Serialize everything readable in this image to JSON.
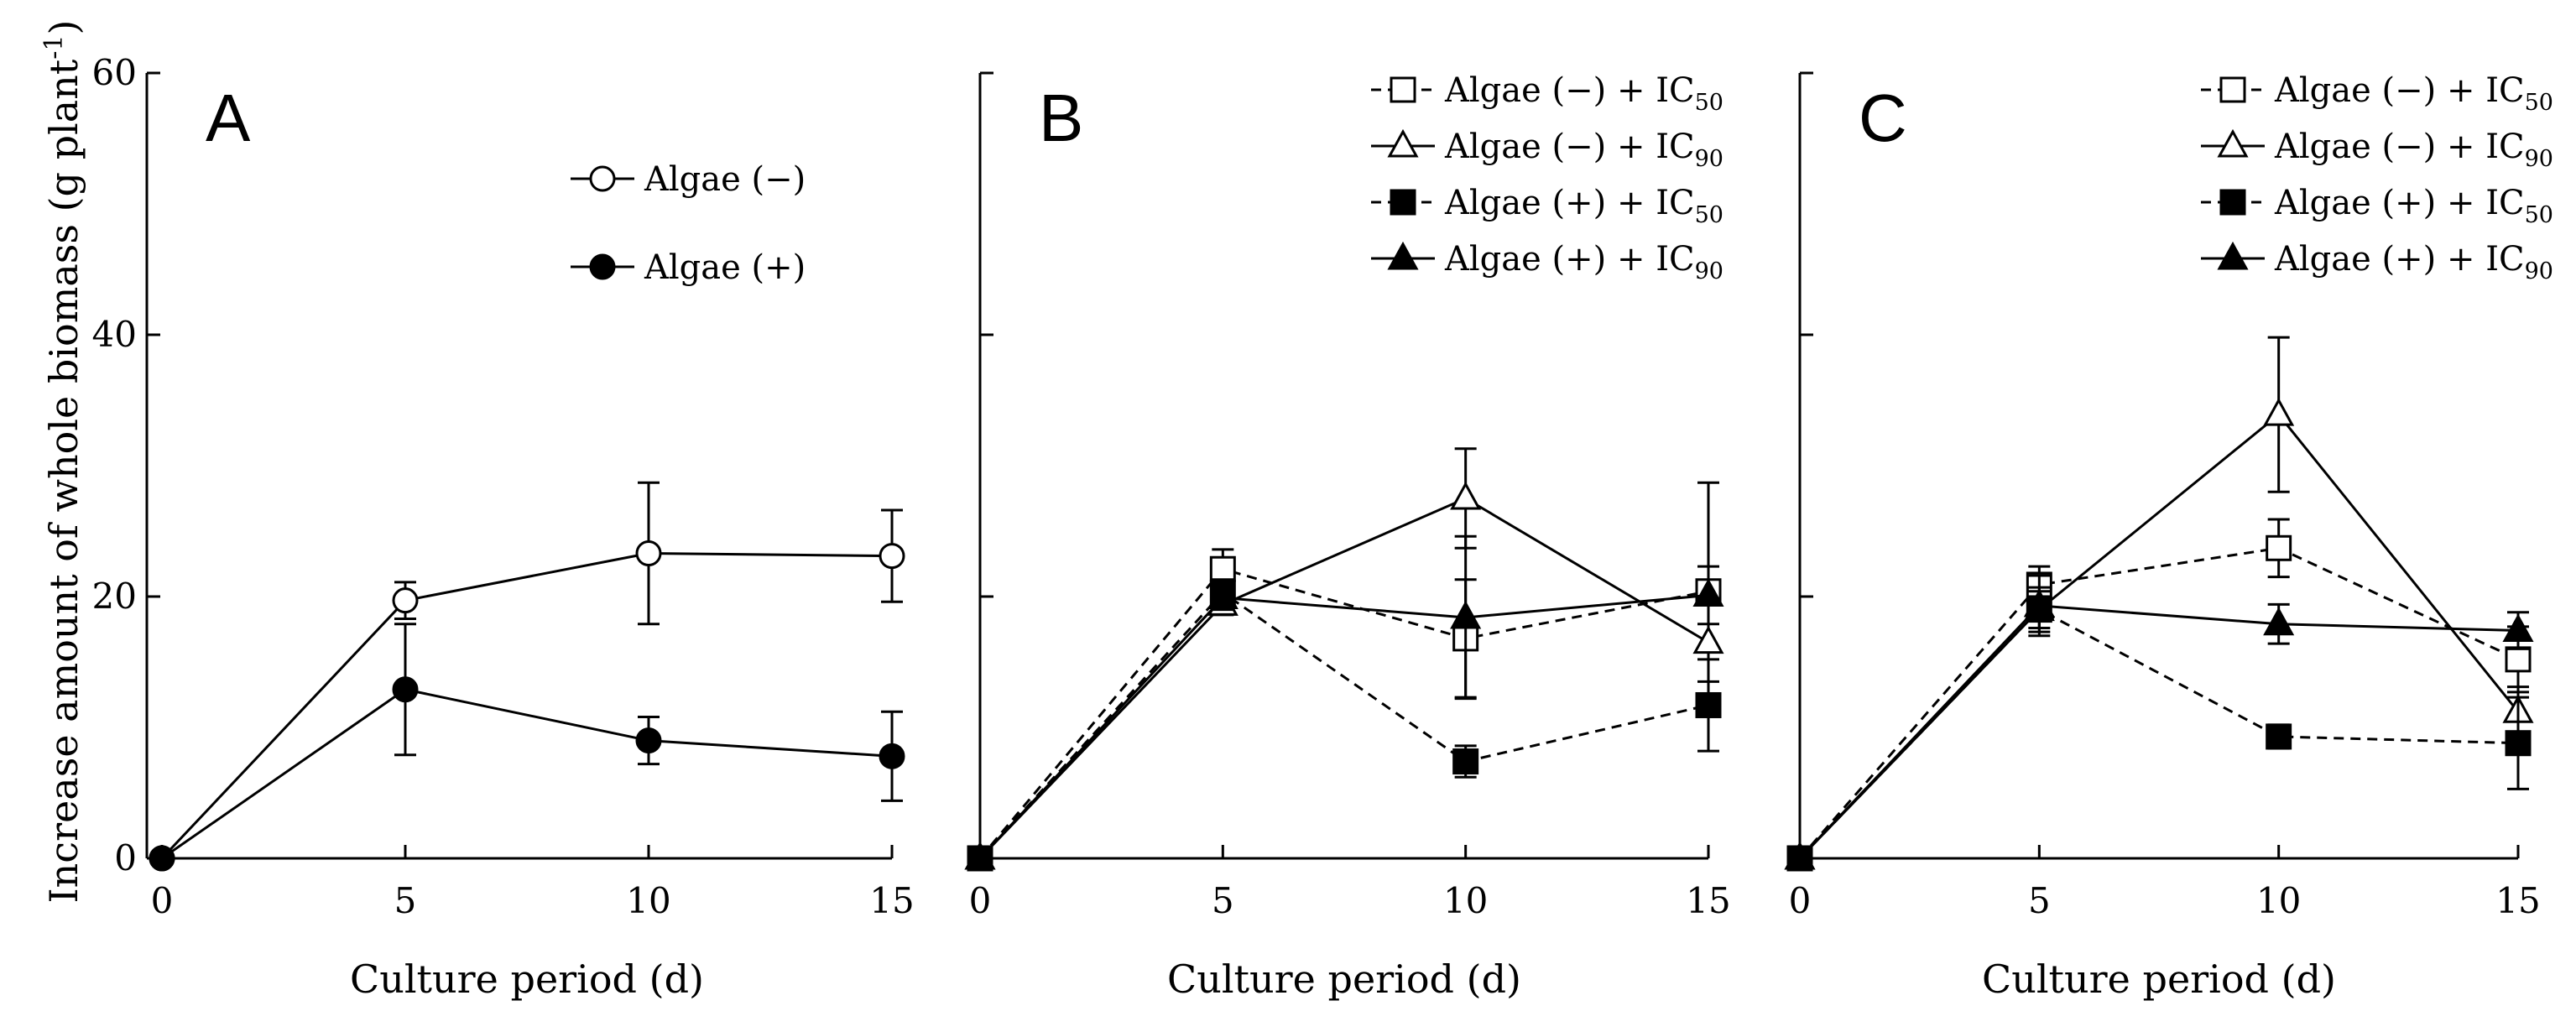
{
  "figure": {
    "ylabel": "Increase amount of whole biomass (g plant",
    "ylabel_sup": "-1",
    "ylabel_close": ")"
  },
  "chart_data": [
    {
      "panel": "A",
      "type": "line",
      "xlabel": "Culture period (d)",
      "x": [
        0,
        5,
        10,
        15
      ],
      "xticks": [
        "0",
        "5",
        "10",
        "15"
      ],
      "yticks": [
        "0",
        "20",
        "40",
        "60"
      ],
      "ylim": [
        0,
        60
      ],
      "legend_position": "top-right",
      "series": [
        {
          "name": "Algae (−)",
          "label_main": "Algae (−)",
          "label_sub": "",
          "label_tail": "",
          "marker": "circle",
          "filled": false,
          "dashed": false,
          "values": [
            0,
            19.7,
            23.3,
            23.1
          ],
          "errors": [
            0,
            1.4,
            5.4,
            3.5
          ]
        },
        {
          "name": "Algae (+)",
          "label_main": "Algae (+)",
          "label_sub": "",
          "label_tail": "",
          "marker": "circle",
          "filled": true,
          "dashed": false,
          "values": [
            0,
            12.9,
            9.0,
            7.8
          ],
          "errors": [
            0,
            5.0,
            1.8,
            3.4
          ]
        }
      ]
    },
    {
      "panel": "B",
      "type": "line",
      "xlabel": "Culture period (d)",
      "x": [
        0,
        5,
        10,
        15
      ],
      "xticks": [
        "0",
        "5",
        "10",
        "15"
      ],
      "yticks": [
        "0",
        "20",
        "40",
        "60"
      ],
      "ylim": [
        0,
        60
      ],
      "legend_position": "top-right",
      "series": [
        {
          "name": "Algae (−) + IC50",
          "label_main": "Algae (−) + IC",
          "label_sub": "50",
          "label_tail": "",
          "marker": "square",
          "filled": false,
          "dashed": true,
          "values": [
            0,
            22.1,
            16.8,
            20.4
          ],
          "errors": [
            0,
            1.5,
            4.5,
            8.3
          ]
        },
        {
          "name": "Algae (−) + IC90",
          "label_main": "Algae (−) + IC",
          "label_sub": "90",
          "label_tail": "",
          "marker": "triangle",
          "filled": false,
          "dashed": false,
          "values": [
            0,
            19.4,
            27.5,
            16.5
          ],
          "errors": [
            0,
            0.8,
            3.8,
            3.0
          ]
        },
        {
          "name": "Algae (+) + IC50",
          "label_main": "Algae (+) + IC",
          "label_sub": "50",
          "label_tail": "",
          "marker": "square",
          "filled": true,
          "dashed": true,
          "values": [
            0,
            20.3,
            7.4,
            11.7
          ],
          "errors": [
            0,
            1.0,
            1.2,
            3.5
          ]
        },
        {
          "name": "Algae (+) + IC90",
          "label_main": "Algae (+) + IC",
          "label_sub": "90",
          "label_tail": "",
          "marker": "triangle",
          "filled": true,
          "dashed": false,
          "values": [
            0,
            19.9,
            18.4,
            20.1
          ],
          "errors": [
            0,
            0.9,
            6.2,
            2.2
          ]
        }
      ]
    },
    {
      "panel": "C",
      "type": "line",
      "xlabel": "Culture period (d)",
      "x": [
        0,
        5,
        10,
        15
      ],
      "xticks": [
        "0",
        "5",
        "10",
        "15"
      ],
      "yticks": [
        "0",
        "20",
        "40",
        "60"
      ],
      "ylim": [
        0,
        60
      ],
      "legend_position": "top-right",
      "series": [
        {
          "name": "Algae (−) + IC50",
          "label_main": "Algae (−) + IC",
          "label_sub": "50",
          "label_tail": "",
          "marker": "square",
          "filled": false,
          "dashed": true,
          "values": [
            0,
            20.9,
            23.7,
            15.2
          ],
          "errors": [
            0,
            1.4,
            2.2,
            2.5
          ]
        },
        {
          "name": "Algae (−) + IC90",
          "label_main": "Algae (−) + IC",
          "label_sub": "90",
          "label_tail": "",
          "marker": "triangle",
          "filled": false,
          "dashed": false,
          "values": [
            0,
            19.0,
            33.9,
            11.2
          ],
          "errors": [
            0,
            1.7,
            5.9,
            1.9
          ]
        },
        {
          "name": "Algae (+) + IC50",
          "label_main": "Algae (+) + IC",
          "label_sub": "50",
          "label_tail": "",
          "marker": "square",
          "filled": true,
          "dashed": true,
          "values": [
            0,
            19.0,
            9.3,
            8.8
          ],
          "errors": [
            0,
            1.4,
            0.9,
            3.5
          ]
        },
        {
          "name": "Algae (+) + IC90",
          "label_main": "Algae (+) + IC",
          "label_sub": "90",
          "label_tail": "",
          "marker": "triangle",
          "filled": true,
          "dashed": false,
          "values": [
            0,
            19.3,
            17.9,
            17.4
          ],
          "errors": [
            0,
            2.3,
            1.5,
            1.4
          ]
        }
      ]
    }
  ]
}
